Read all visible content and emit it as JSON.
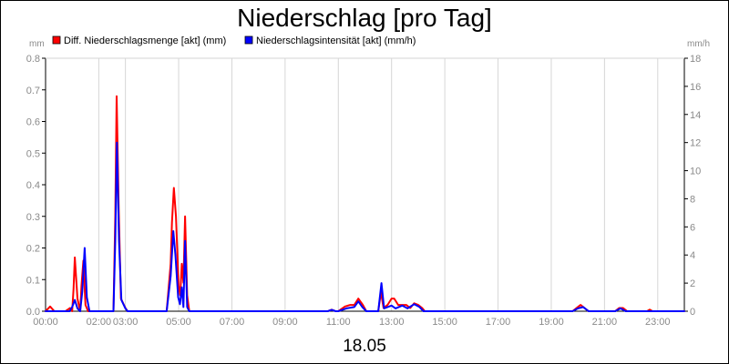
{
  "chart_data": {
    "type": "line",
    "title": "Niederschlag [pro Tag]",
    "date_label": "18.05",
    "ylabel_left": "mm",
    "ylabel_right": "mm/h",
    "ylim_left": [
      0,
      0.8
    ],
    "ylim_right": [
      0,
      18
    ],
    "yticks_left": [
      "0.0",
      "0.1",
      "0.2",
      "0.3",
      "0.4",
      "0.5",
      "0.6",
      "0.7",
      "0.8"
    ],
    "yticks_right": [
      "0",
      "2",
      "4",
      "6",
      "8",
      "10",
      "12",
      "14",
      "16",
      "18"
    ],
    "xlim": [
      0,
      24
    ],
    "xticks": [
      {
        "t": 0,
        "label": "00:00"
      },
      {
        "t": 2,
        "label": "02:00"
      },
      {
        "t": 3,
        "label": "03:00"
      },
      {
        "t": 5,
        "label": "05:00"
      },
      {
        "t": 7,
        "label": "07:00"
      },
      {
        "t": 9,
        "label": "09:00"
      },
      {
        "t": 11,
        "label": "11:00"
      },
      {
        "t": 13,
        "label": "13:00"
      },
      {
        "t": 15,
        "label": "15:00"
      },
      {
        "t": 17,
        "label": "17:00"
      },
      {
        "t": 19,
        "label": "19:00"
      },
      {
        "t": 21,
        "label": "21:00"
      },
      {
        "t": 23,
        "label": "23:00"
      }
    ],
    "grid": "vertical",
    "legend_position": "top-left",
    "series": [
      {
        "name": "Diff. Niederschlagsmenge [akt] (mm)",
        "color": "#ff0000",
        "axis": "left",
        "points": [
          [
            0.0,
            0
          ],
          [
            0.17,
            0.015
          ],
          [
            0.33,
            0
          ],
          [
            0.75,
            0
          ],
          [
            0.92,
            0.01
          ],
          [
            1.0,
            0
          ],
          [
            1.05,
            0.07
          ],
          [
            1.1,
            0.17
          ],
          [
            1.2,
            0.04
          ],
          [
            1.3,
            0
          ],
          [
            1.35,
            0.08
          ],
          [
            1.42,
            0.16
          ],
          [
            1.5,
            0.02
          ],
          [
            1.6,
            0
          ],
          [
            2.55,
            0
          ],
          [
            2.62,
            0.3
          ],
          [
            2.67,
            0.68
          ],
          [
            2.75,
            0.32
          ],
          [
            2.83,
            0.04
          ],
          [
            3.0,
            0.01
          ],
          [
            3.08,
            0
          ],
          [
            4.55,
            0
          ],
          [
            4.7,
            0.15
          ],
          [
            4.75,
            0.28
          ],
          [
            4.82,
            0.39
          ],
          [
            4.9,
            0.3
          ],
          [
            5.0,
            0.08
          ],
          [
            5.06,
            0.05
          ],
          [
            5.12,
            0.15
          ],
          [
            5.18,
            0.09
          ],
          [
            5.24,
            0.3
          ],
          [
            5.32,
            0.05
          ],
          [
            5.4,
            0
          ],
          [
            10.6,
            0
          ],
          [
            10.75,
            0.005
          ],
          [
            10.9,
            0
          ],
          [
            11.0,
            0
          ],
          [
            11.25,
            0.015
          ],
          [
            11.45,
            0.02
          ],
          [
            11.6,
            0.02
          ],
          [
            11.75,
            0.04
          ],
          [
            11.92,
            0.02
          ],
          [
            12.05,
            0
          ],
          [
            12.5,
            0
          ],
          [
            12.6,
            0.06
          ],
          [
            12.7,
            0.01
          ],
          [
            12.85,
            0.02
          ],
          [
            13.0,
            0.04
          ],
          [
            13.1,
            0.04
          ],
          [
            13.25,
            0.02
          ],
          [
            13.4,
            0.02
          ],
          [
            13.55,
            0.02
          ],
          [
            13.7,
            0.01
          ],
          [
            13.85,
            0.025
          ],
          [
            14.0,
            0.02
          ],
          [
            14.15,
            0.01
          ],
          [
            14.25,
            0
          ],
          [
            19.8,
            0
          ],
          [
            19.95,
            0.01
          ],
          [
            20.1,
            0.02
          ],
          [
            20.25,
            0.01
          ],
          [
            20.4,
            0
          ],
          [
            21.4,
            0
          ],
          [
            21.55,
            0.01
          ],
          [
            21.7,
            0.01
          ],
          [
            21.85,
            0
          ],
          [
            22.6,
            0
          ],
          [
            22.7,
            0.005
          ],
          [
            22.8,
            0
          ],
          [
            24.0,
            0
          ]
        ]
      },
      {
        "name": "Niederschlagsintensität [akt] (mm/h)",
        "color": "#0000ff",
        "axis": "right",
        "points": [
          [
            0.0,
            0
          ],
          [
            0.9,
            0
          ],
          [
            1.0,
            0.3
          ],
          [
            1.1,
            0.8
          ],
          [
            1.2,
            0.2
          ],
          [
            1.3,
            0
          ],
          [
            1.38,
            1.4
          ],
          [
            1.47,
            4.5
          ],
          [
            1.55,
            1.0
          ],
          [
            1.65,
            0
          ],
          [
            2.55,
            0
          ],
          [
            2.62,
            5.0
          ],
          [
            2.68,
            12.0
          ],
          [
            2.76,
            5.0
          ],
          [
            2.85,
            0.8
          ],
          [
            3.0,
            0.2
          ],
          [
            3.08,
            0
          ],
          [
            4.55,
            0
          ],
          [
            4.7,
            2.5
          ],
          [
            4.8,
            5.7
          ],
          [
            4.88,
            4.0
          ],
          [
            4.98,
            1.0
          ],
          [
            5.05,
            0.5
          ],
          [
            5.12,
            1.7
          ],
          [
            5.18,
            0.3
          ],
          [
            5.24,
            5.0
          ],
          [
            5.32,
            0.3
          ],
          [
            5.4,
            0
          ],
          [
            10.6,
            0
          ],
          [
            10.75,
            0.1
          ],
          [
            10.9,
            0
          ],
          [
            11.0,
            0
          ],
          [
            11.3,
            0.2
          ],
          [
            11.6,
            0.3
          ],
          [
            11.75,
            0.7
          ],
          [
            11.9,
            0.3
          ],
          [
            12.05,
            0
          ],
          [
            12.5,
            0
          ],
          [
            12.62,
            2.0
          ],
          [
            12.72,
            0.2
          ],
          [
            12.85,
            0.3
          ],
          [
            13.0,
            0.4
          ],
          [
            13.15,
            0.2
          ],
          [
            13.4,
            0.4
          ],
          [
            13.6,
            0.2
          ],
          [
            13.85,
            0.5
          ],
          [
            14.05,
            0.3
          ],
          [
            14.2,
            0
          ],
          [
            19.8,
            0
          ],
          [
            20.0,
            0.2
          ],
          [
            20.2,
            0.3
          ],
          [
            20.4,
            0
          ],
          [
            21.4,
            0
          ],
          [
            21.6,
            0.2
          ],
          [
            21.8,
            0
          ],
          [
            24.0,
            0
          ]
        ]
      }
    ]
  }
}
